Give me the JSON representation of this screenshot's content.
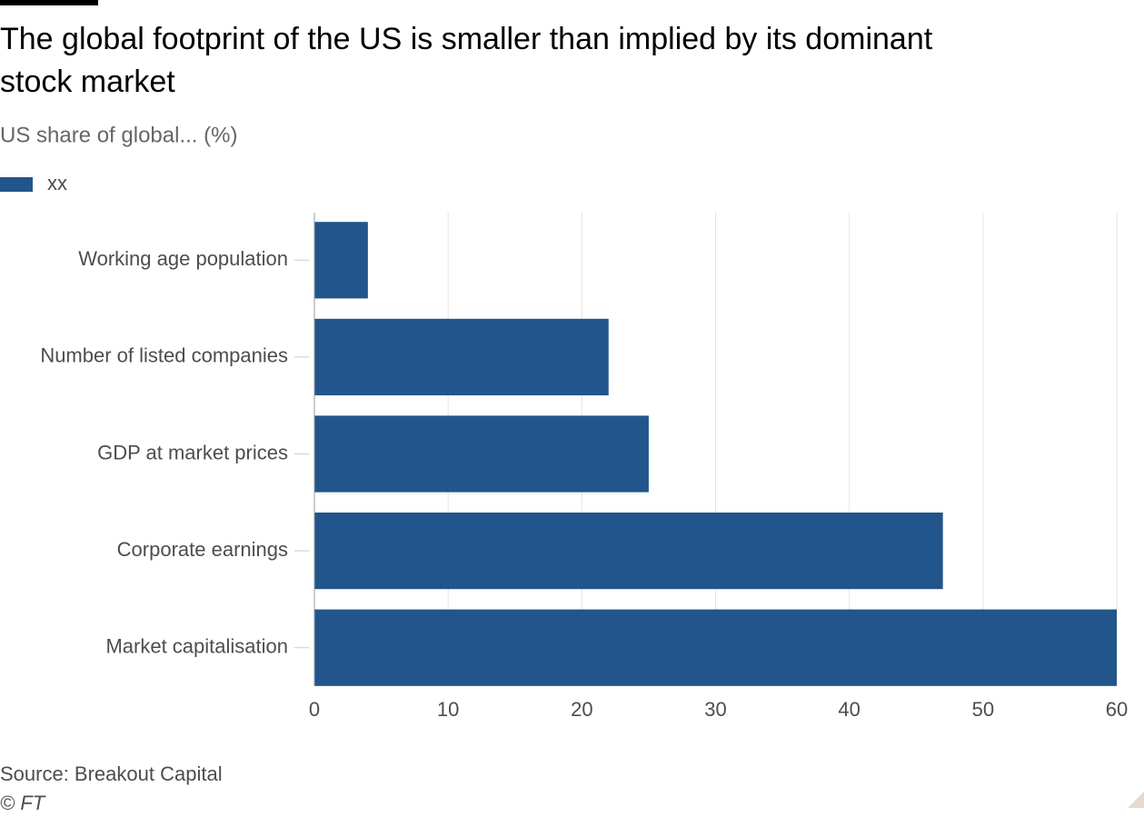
{
  "chart_data": {
    "type": "bar",
    "orientation": "horizontal",
    "title": "The global footprint of the US is smaller than implied by its dominant stock market",
    "subtitle": "US share of global... (%)",
    "categories": [
      "Working age population",
      "Number of listed companies",
      "GDP at market prices",
      "Corporate earnings",
      "Market capitalisation"
    ],
    "series": [
      {
        "name": "xx",
        "color": "#22558b",
        "values": [
          4,
          22,
          25,
          47,
          60
        ]
      }
    ],
    "xlim": [
      0,
      60
    ],
    "xticks": [
      0,
      10,
      20,
      30,
      40,
      50,
      60
    ],
    "grid": true,
    "source": "Source: Breakout Capital",
    "credit": "© FT"
  }
}
